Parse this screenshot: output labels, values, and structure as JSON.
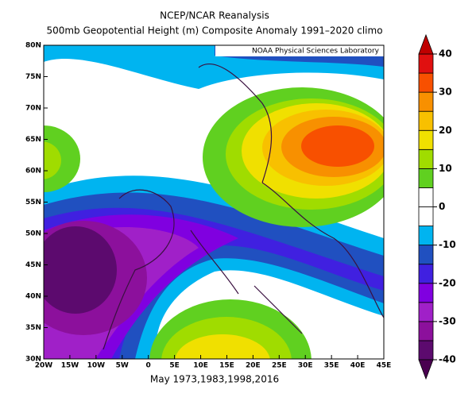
{
  "chart_data": {
    "type": "contour-map",
    "title": "NCEP/NCAR Reanalysis",
    "subtitle": "500mb Geopotential Height (m) Composite Anomaly 1991–2020 climo",
    "credit": "NOAA Physical Sciences Laboratory",
    "caption": "May 1973,1983,1998,2016",
    "xlim": [
      -20,
      45
    ],
    "ylim": [
      30,
      80
    ],
    "xticks": [
      {
        "value": -20,
        "label": "20W"
      },
      {
        "value": -15,
        "label": "15W"
      },
      {
        "value": -10,
        "label": "10W"
      },
      {
        "value": -5,
        "label": "5W"
      },
      0,
      {
        "value": 5,
        "label": "5E"
      },
      {
        "value": 10,
        "label": "10E"
      },
      {
        "value": 15,
        "label": "15E"
      },
      {
        "value": 20,
        "label": "20E"
      },
      {
        "value": 25,
        "label": "25E"
      },
      {
        "value": 30,
        "label": "30E"
      },
      {
        "value": 35,
        "label": "35E"
      },
      {
        "value": 40,
        "label": "40E"
      },
      {
        "value": 45,
        "label": "45E"
      }
    ],
    "yticks": [
      {
        "value": 30,
        "label": "30N"
      },
      {
        "value": 35,
        "label": "35N"
      },
      {
        "value": 40,
        "label": "40N"
      },
      {
        "value": 45,
        "label": "45N"
      },
      {
        "value": 50,
        "label": "50N"
      },
      {
        "value": 55,
        "label": "55N"
      },
      {
        "value": 60,
        "label": "60N"
      },
      {
        "value": 65,
        "label": "65N"
      },
      {
        "value": 70,
        "label": "70N"
      },
      {
        "value": 75,
        "label": "75N"
      },
      {
        "value": 80,
        "label": "80N"
      }
    ],
    "colorbar": {
      "lim": [
        -40,
        40
      ],
      "ticks": [
        -40,
        -30,
        -20,
        -10,
        0,
        10,
        20,
        30,
        40
      ],
      "colors": [
        "#5c0a6e",
        "#8c109c",
        "#a020c8",
        "#8000e0",
        "#4020e0",
        "#2050c0",
        "#00b4f0",
        "#ffffff",
        "#ffffff",
        "#60d020",
        "#a0dc00",
        "#f0e000",
        "#f8c000",
        "#f89000",
        "#f85000",
        "#e01010"
      ],
      "under": "#4a0050",
      "over": "#c00000"
    }
  }
}
